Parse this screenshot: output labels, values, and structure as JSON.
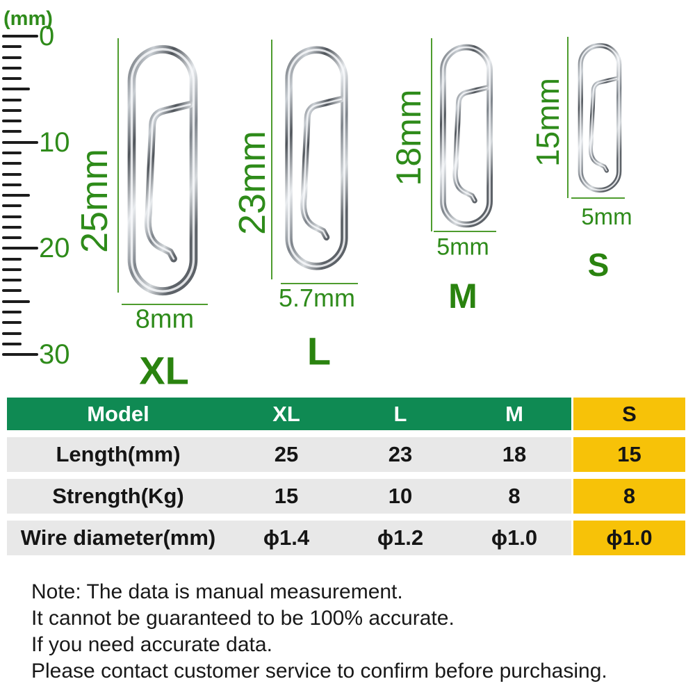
{
  "colors": {
    "text_green": "#2E8B1A",
    "label_green": "#2A830F",
    "line_green": "#4E9C2E",
    "table_header_bg": "#0F8A53",
    "table_header_text": "#FFFFFF",
    "highlight_bg": "#F7C208",
    "row_bg": "#E8E8E8",
    "table_text": "#151515",
    "note_text": "#181818"
  },
  "ruler": {
    "unit": "(mm)",
    "numbers": [
      "0",
      "10",
      "20",
      "30"
    ]
  },
  "products": [
    {
      "size": "XL",
      "length_label": "25mm",
      "width_label": "8mm"
    },
    {
      "size": "L",
      "length_label": "23mm",
      "width_label": "5.7mm"
    },
    {
      "size": "M",
      "length_label": "18mm",
      "width_label": "5mm"
    },
    {
      "size": "S",
      "length_label": "15mm",
      "width_label": "5mm"
    }
  ],
  "table": {
    "columns": [
      "Model",
      "XL",
      "L",
      "M",
      "S"
    ],
    "rows": [
      {
        "label": "Length(mm)",
        "values": [
          "25",
          "23",
          "18",
          "15"
        ]
      },
      {
        "label": "Strength(Kg)",
        "values": [
          "15",
          "10",
          "8",
          "8"
        ]
      },
      {
        "label": "Wire diameter(mm)",
        "values": [
          "ϕ1.4",
          "ϕ1.2",
          "ϕ1.0",
          "ϕ1.0"
        ]
      }
    ],
    "highlighted_column": "S"
  },
  "note": {
    "lines": [
      "Note: The data is manual measurement.",
      "It cannot be guaranteed to be 100% accurate.",
      "If you need accurate data.",
      "Please contact customer service to confirm before purchasing."
    ]
  }
}
